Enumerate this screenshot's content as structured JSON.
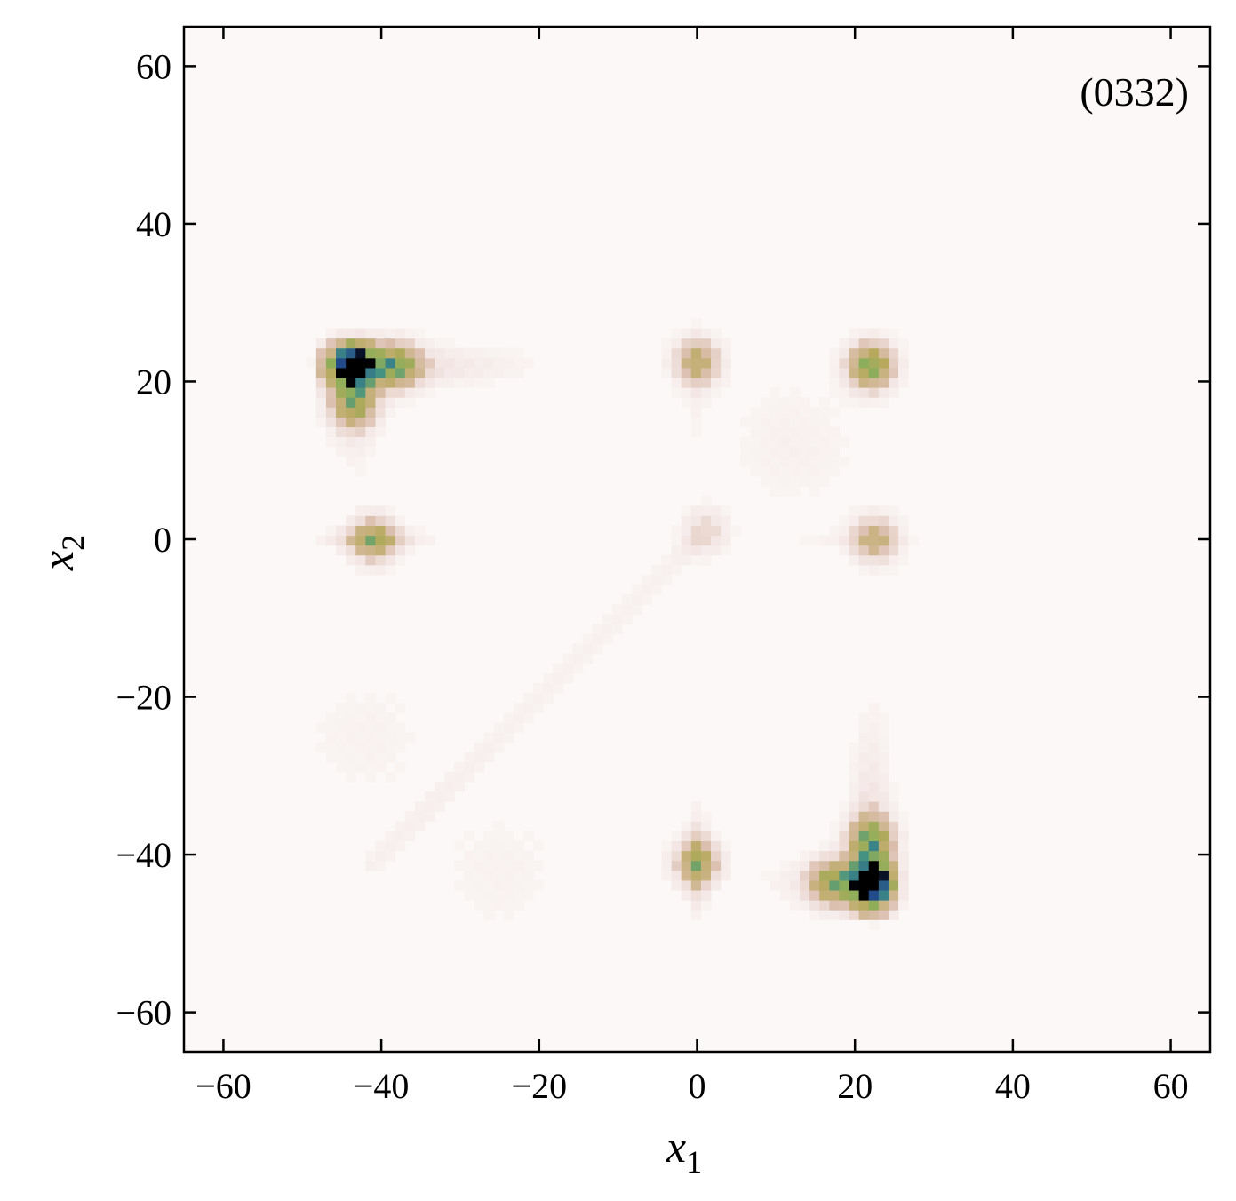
{
  "chart_data": {
    "type": "heatmap",
    "panel_label": "(0332)",
    "xlabel": "x",
    "xlabel_sub": "1",
    "ylabel": "x",
    "ylabel_sub": "2",
    "xlim": [
      -65,
      65
    ],
    "ylim": [
      -65,
      65
    ],
    "xticks": [
      -60,
      -40,
      -20,
      0,
      20,
      40,
      60
    ],
    "yticks": [
      -60,
      -40,
      -20,
      0,
      20,
      40,
      60
    ],
    "xtick_labels": [
      "−60",
      "−40",
      "−20",
      "0",
      "20",
      "40",
      "60"
    ],
    "ytick_labels": [
      "−60",
      "−40",
      "−20",
      "0",
      "20",
      "40",
      "60"
    ],
    "colormap": [
      "#fbf8f7",
      "#f3e6e4",
      "#dcc0b0",
      "#c9b282",
      "#b5a95d",
      "#8fae5a",
      "#3f8f86",
      "#1d3f8a",
      "#000000"
    ],
    "grid": false,
    "legend": false,
    "peaks": [
      {
        "x": -43.5,
        "y": 22.0,
        "intensity": 1.0
      },
      {
        "x": 22.0,
        "y": -43.5,
        "intensity": 1.0
      },
      {
        "x": 22.0,
        "y": 22.0,
        "intensity": 0.7
      },
      {
        "x": -38.0,
        "y": 22.0,
        "intensity": 0.55
      },
      {
        "x": 22.0,
        "y": -38.0,
        "intensity": 0.55
      },
      {
        "x": -43.5,
        "y": 17.0,
        "intensity": 0.5
      },
      {
        "x": 17.0,
        "y": -43.5,
        "intensity": 0.5
      },
      {
        "x": -41.0,
        "y": 0.0,
        "intensity": 0.5
      },
      {
        "x": 0.0,
        "y": -41.0,
        "intensity": 0.5
      },
      {
        "x": 0.0,
        "y": 22.5,
        "intensity": 0.45
      },
      {
        "x": 22.5,
        "y": 0.0,
        "intensity": 0.4
      },
      {
        "x": 1.0,
        "y": 1.0,
        "intensity": 0.2
      }
    ]
  }
}
